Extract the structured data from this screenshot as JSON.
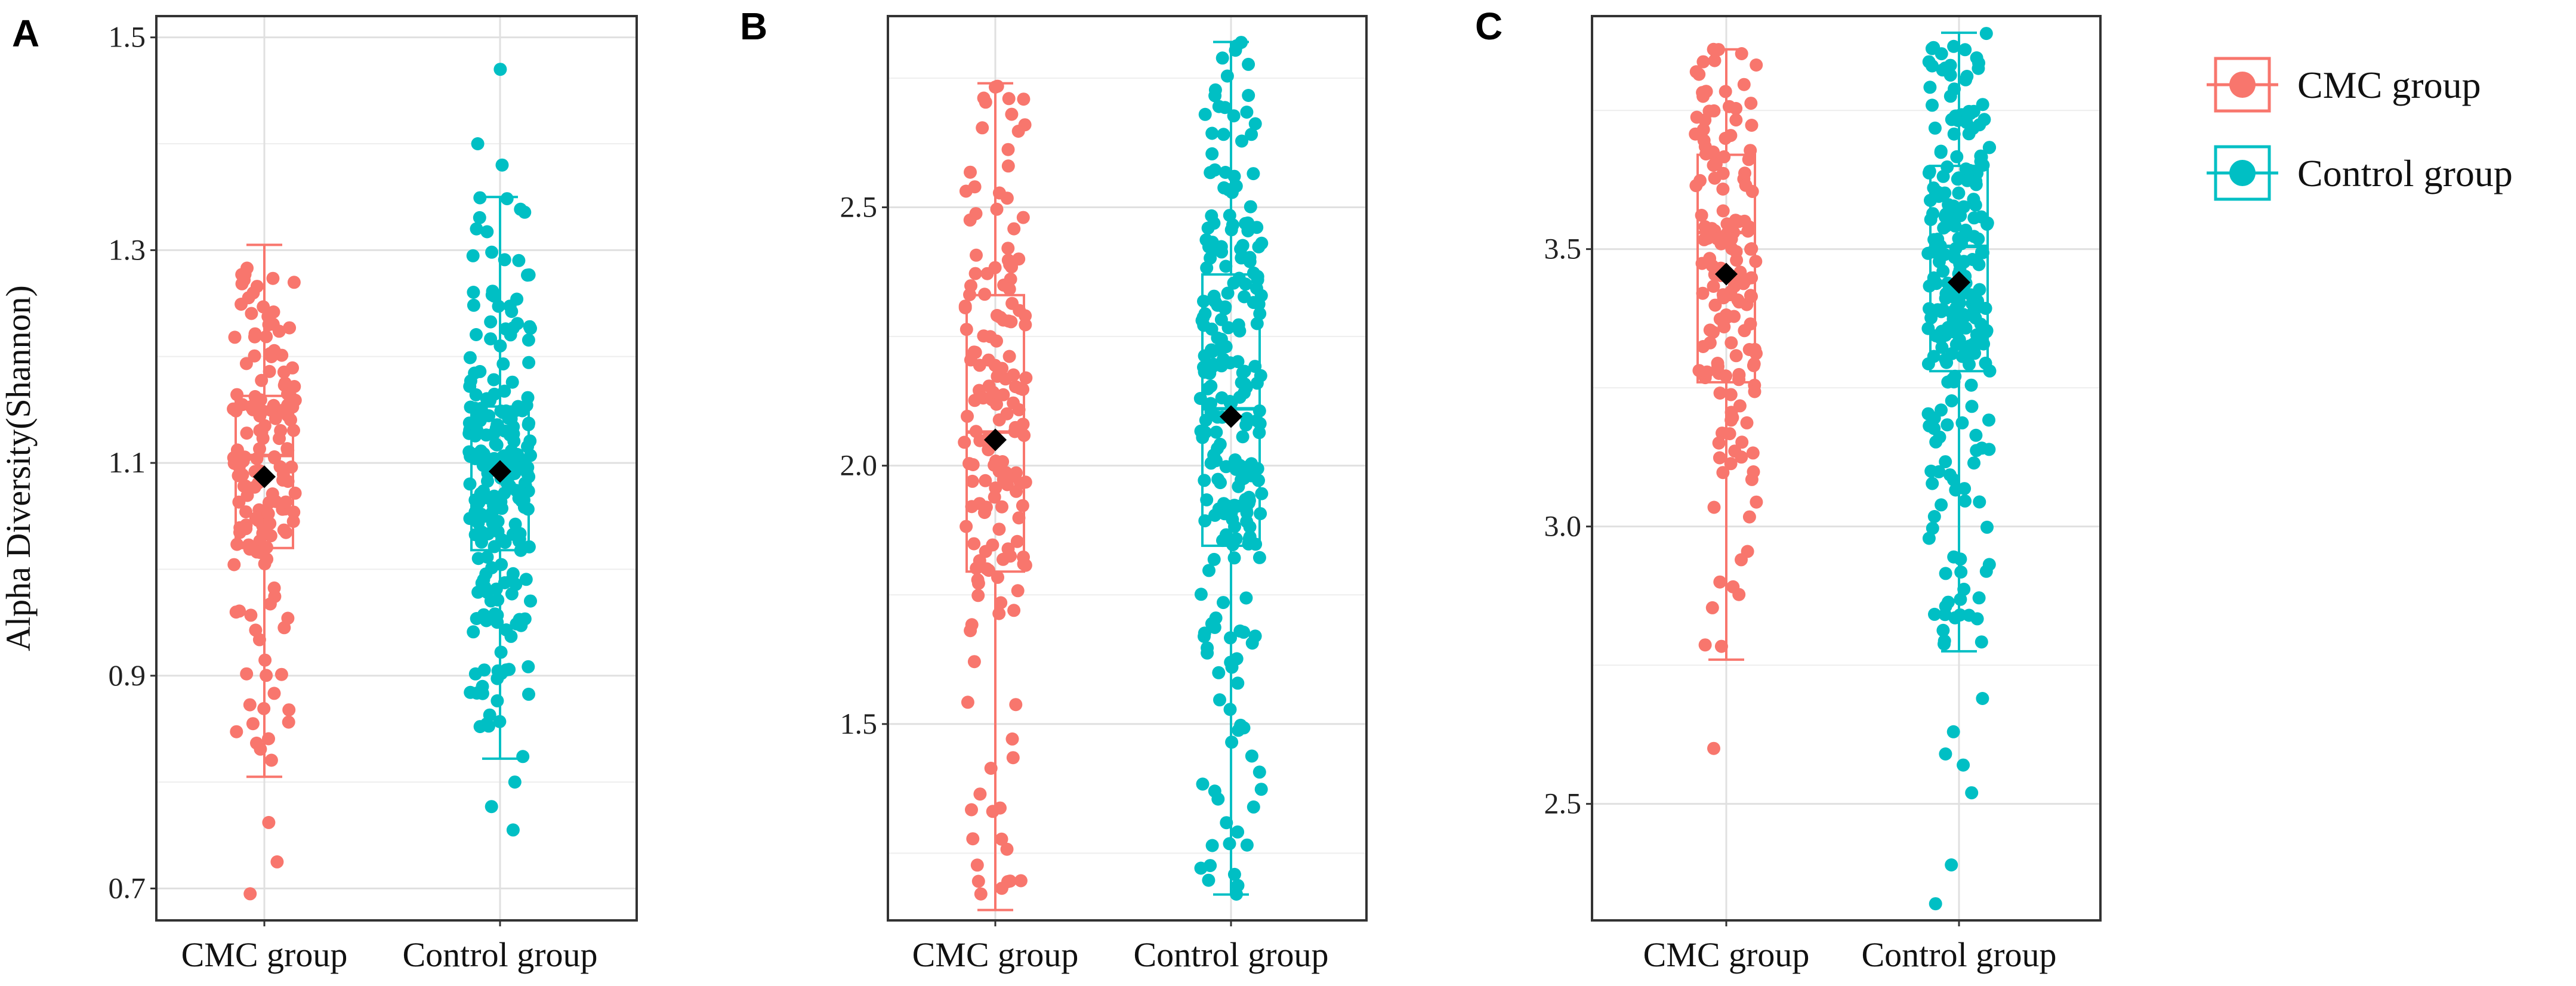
{
  "chart_data": [
    {
      "type": "box",
      "panel": "A",
      "ylabel": "Alpha Diversity(Shannon)",
      "ylim": [
        0.67,
        1.52
      ],
      "yticks": [
        0.7,
        0.9,
        1.1,
        1.3,
        1.5
      ],
      "ytick_labels": [
        "0.7",
        "0.9",
        "1.1",
        "1.3",
        "1.5"
      ],
      "categories": [
        "CMC group",
        "Control group"
      ],
      "series": [
        {
          "name": "CMC group",
          "color": "#F8766D",
          "whisker_low": 0.805,
          "q1": 1.02,
          "median": 1.107,
          "q3": 1.163,
          "whisker_high": 1.305,
          "mean": 1.087,
          "n_points": 160,
          "outliers": [
            0.762,
            0.725,
            0.695
          ]
        },
        {
          "name": "Control group",
          "color": "#00BFC4",
          "whisker_low": 0.822,
          "q1": 1.018,
          "median": 1.103,
          "q3": 1.153,
          "whisker_high": 1.35,
          "mean": 1.092,
          "n_points": 240,
          "outliers": [
            1.47,
            1.4,
            1.38,
            0.8,
            0.777,
            0.755
          ]
        }
      ]
    },
    {
      "type": "box",
      "panel": "B",
      "ylabel": "",
      "ylim": [
        1.12,
        2.87
      ],
      "yticks": [
        1.5,
        2.0,
        2.5
      ],
      "ytick_labels": [
        "1.5",
        "2.0",
        "2.5"
      ],
      "categories": [
        "CMC group",
        "Control group"
      ],
      "series": [
        {
          "name": "CMC group",
          "color": "#F8766D",
          "whisker_low": 1.14,
          "q1": 1.795,
          "median": 2.065,
          "q3": 2.33,
          "whisker_high": 2.74,
          "mean": 2.05,
          "n_points": 160,
          "outliers": []
        },
        {
          "name": "Control group",
          "color": "#00BFC4",
          "whisker_low": 1.17,
          "q1": 1.845,
          "median": 2.11,
          "q3": 2.37,
          "whisker_high": 2.82,
          "mean": 2.095,
          "n_points": 240,
          "outliers": []
        }
      ]
    },
    {
      "type": "box",
      "panel": "C",
      "ylabel": "",
      "ylim": [
        2.29,
        3.92
      ],
      "yticks": [
        2.5,
        3.0,
        3.5
      ],
      "ytick_labels": [
        "2.5",
        "3.0",
        "3.5"
      ],
      "categories": [
        "CMC group",
        "Control group"
      ],
      "series": [
        {
          "name": "CMC group",
          "color": "#F8766D",
          "whisker_low": 2.76,
          "q1": 3.26,
          "median": 3.53,
          "q3": 3.67,
          "whisker_high": 3.86,
          "mean": 3.455,
          "n_points": 160,
          "outliers": [
            2.6
          ]
        },
        {
          "name": "Control group",
          "color": "#00BFC4",
          "whisker_low": 2.775,
          "q1": 3.28,
          "median": 3.505,
          "q3": 3.65,
          "whisker_high": 3.89,
          "mean": 3.44,
          "n_points": 240,
          "outliers": [
            2.69,
            2.63,
            2.59,
            2.57,
            2.52,
            2.39,
            2.32
          ]
        }
      ]
    }
  ],
  "legend": {
    "position": "right",
    "items": [
      {
        "label": "CMC group",
        "color": "#F8766D"
      },
      {
        "label": "Control group",
        "color": "#00BFC4"
      }
    ]
  }
}
